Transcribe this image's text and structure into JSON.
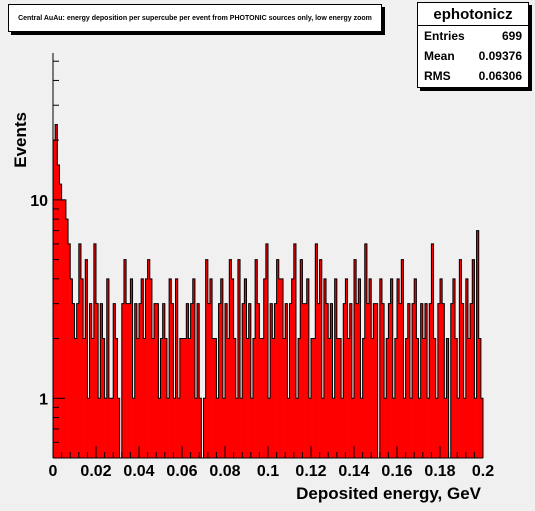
{
  "title": "Central AuAu: energy deposition per supercube per event from PHOTONIC sources only, low energy zoom",
  "stats": {
    "name": "ephotonicz",
    "rows": [
      {
        "label": "Entries",
        "value": "699"
      },
      {
        "label": "Mean",
        "value": "0.09376"
      },
      {
        "label": "RMS",
        "value": "0.06306"
      }
    ]
  },
  "colors": {
    "fill": "#ff0000",
    "line": "#000000",
    "background": "#f0f0f0"
  },
  "chart_data": {
    "type": "bar",
    "title": "Central AuAu: energy deposition per supercube per event from PHOTONIC sources only, low energy zoom",
    "xlabel": "Deposited energy, GeV",
    "ylabel": "Events",
    "xlim": [
      0,
      0.2
    ],
    "ylim": [
      0.5,
      55
    ],
    "log_y": true,
    "x_ticks": [
      "0",
      "0.02",
      "0.04",
      "0.06",
      "0.08",
      "0.1",
      "0.12",
      "0.14",
      "0.16",
      "0.18",
      "0.2"
    ],
    "y_ticks": [
      "1",
      "10"
    ],
    "bin_width": 0.001,
    "values": [
      20,
      24,
      15,
      12,
      10,
      10,
      8,
      6,
      4,
      3,
      2,
      3,
      6,
      4,
      2,
      5,
      1,
      3,
      2,
      6,
      3,
      1,
      3,
      2,
      1,
      4,
      1,
      1,
      3,
      2,
      1,
      0,
      3,
      5,
      3,
      3,
      4,
      1,
      3,
      2,
      3,
      4,
      2,
      4,
      5,
      4,
      2,
      3,
      3,
      1,
      2,
      3,
      2,
      1,
      4,
      3,
      1,
      4,
      1,
      2,
      2,
      2,
      3,
      2,
      3,
      4,
      1,
      3,
      1,
      0,
      1,
      5,
      3,
      4,
      2,
      2,
      1,
      3,
      4,
      1,
      3,
      2,
      5,
      4,
      2,
      1,
      5,
      1,
      3,
      4,
      2,
      3,
      1,
      2,
      5,
      3,
      2,
      2,
      4,
      6,
      1,
      3,
      2,
      3,
      5,
      4,
      4,
      2,
      3,
      1,
      3,
      4,
      6,
      1,
      2,
      5,
      3,
      3,
      4,
      1,
      2,
      2,
      6,
      3,
      5,
      1,
      4,
      3,
      2,
      3,
      1,
      4,
      2,
      2,
      1,
      3,
      4,
      2,
      3,
      1,
      5,
      3,
      4,
      1,
      2,
      6,
      3,
      4,
      2,
      3,
      3,
      0,
      4,
      3,
      1,
      2,
      3,
      4,
      1,
      2,
      4,
      3,
      5,
      1,
      2,
      3,
      1,
      3,
      4,
      2,
      1,
      3,
      2,
      3,
      1,
      3,
      6,
      2,
      1,
      3,
      4,
      3,
      1,
      2,
      0,
      3,
      4,
      2,
      1,
      5,
      3,
      1,
      4,
      2,
      3,
      5,
      1,
      7,
      2,
      1
    ]
  }
}
